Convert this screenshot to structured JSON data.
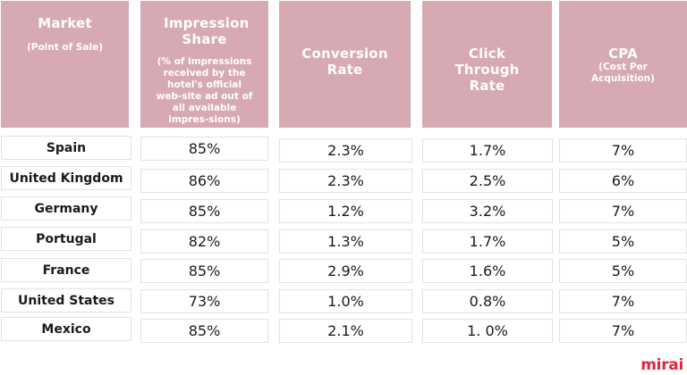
{
  "chart_data": {
    "type": "table",
    "columns": [
      {
        "title": "Market",
        "subtitle": "(Point of Sale)"
      },
      {
        "title": "Impression Share",
        "subtitle": "(% of impressions received by the hotel's official web-site ad out of all available impres-sions)"
      },
      {
        "title": "Conversion Rate",
        "subtitle": ""
      },
      {
        "title": "Click Through Rate",
        "subtitle": ""
      },
      {
        "title": "CPA",
        "subtitle": "(Cost Per Acquisition)"
      }
    ],
    "rows": [
      {
        "market": "Spain",
        "impression_share": "85%",
        "conversion_rate": "2.3%",
        "ctr": "1.7%",
        "cpa": "7%"
      },
      {
        "market": "United Kingdom",
        "impression_share": "86%",
        "conversion_rate": "2.3%",
        "ctr": "2.5%",
        "cpa": "6%"
      },
      {
        "market": "Germany",
        "impression_share": "85%",
        "conversion_rate": "1.2%",
        "ctr": "3.2%",
        "cpa": "7%"
      },
      {
        "market": "Portugal",
        "impression_share": "82%",
        "conversion_rate": "1.3%",
        "ctr": "1.7%",
        "cpa": "5%"
      },
      {
        "market": "France",
        "impression_share": "85%",
        "conversion_rate": "2.9%",
        "ctr": "1.6%",
        "cpa": "5%"
      },
      {
        "market": "United States",
        "impression_share": "73%",
        "conversion_rate": "1.0%",
        "ctr": "0.8%",
        "cpa": "7%"
      },
      {
        "market": "Mexico",
        "impression_share": "85%",
        "conversion_rate": "2.1%",
        "ctr": "1. 0%",
        "cpa": "7%"
      }
    ]
  },
  "brand": {
    "logo_text": "mirai",
    "color": "#e0253e"
  },
  "colors": {
    "header_bg": "#d6a9b3",
    "header_text": "#ffffff",
    "cell_border": "#e2e2e2"
  }
}
